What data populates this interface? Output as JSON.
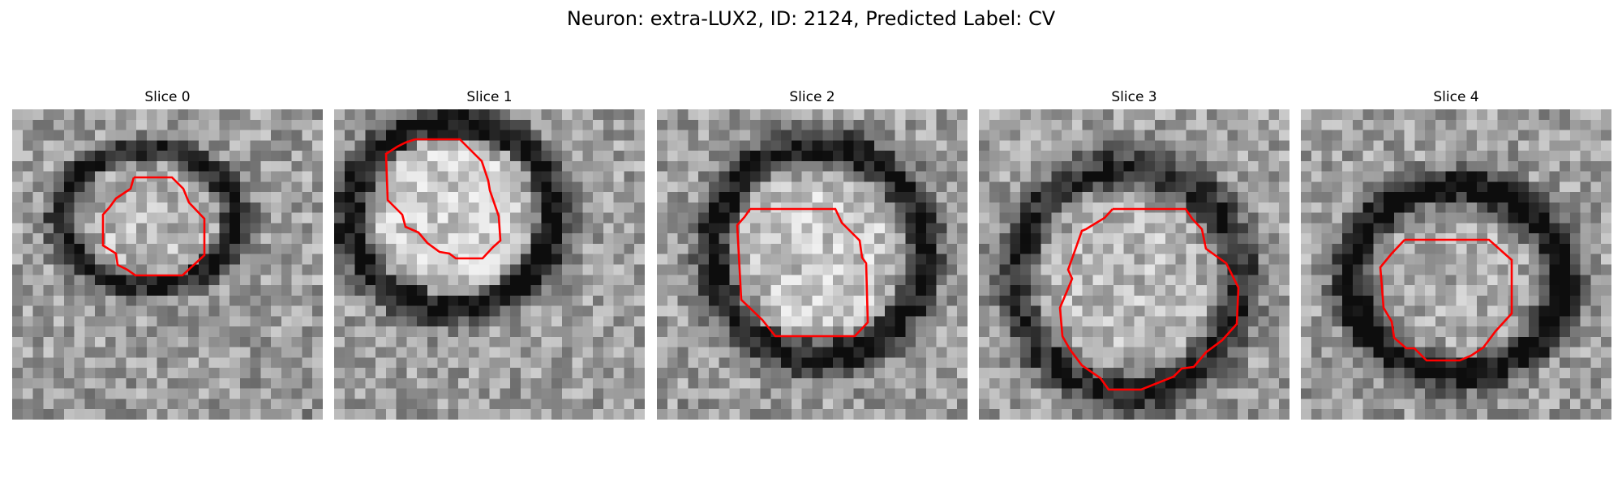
{
  "figure": {
    "title": "Neuron: extra-LUX2, ID: 2124, Predicted Label: CV"
  },
  "panels": [
    {
      "title": "Slice 0",
      "contour_color": "#ff0000"
    },
    {
      "title": "Slice 1",
      "contour_color": "#ff0000"
    },
    {
      "title": "Slice 2",
      "contour_color": "#ff0000"
    },
    {
      "title": "Slice 3",
      "contour_color": "#ff0000"
    },
    {
      "title": "Slice 4",
      "contour_color": "#ff0000"
    }
  ]
}
